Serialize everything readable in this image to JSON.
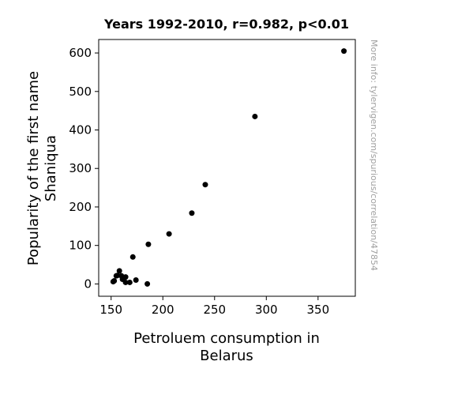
{
  "chart_data": {
    "type": "scatter",
    "title": "Years 1992-2010, r=0.982, p<0.01",
    "xlabel_lines": [
      "Petroluem consumption in",
      "Belarus"
    ],
    "ylabel_lines": [
      "Popularity of the first name",
      "Shaniqua"
    ],
    "watermark": "More info: tylervigen.com/spurious/correlation/47854",
    "xlim": [
      138,
      386
    ],
    "ylim": [
      -32,
      635
    ],
    "xticks": [
      150,
      200,
      250,
      300,
      350
    ],
    "yticks": [
      0,
      100,
      200,
      300,
      400,
      500,
      600
    ],
    "grid": false,
    "marker_color": "#000000",
    "points": [
      {
        "x": 375,
        "y": 605
      },
      {
        "x": 289,
        "y": 435
      },
      {
        "x": 241,
        "y": 258
      },
      {
        "x": 228,
        "y": 184
      },
      {
        "x": 206,
        "y": 130
      },
      {
        "x": 186,
        "y": 103
      },
      {
        "x": 185,
        "y": 0
      },
      {
        "x": 171,
        "y": 70
      },
      {
        "x": 174,
        "y": 10
      },
      {
        "x": 168,
        "y": 4
      },
      {
        "x": 164,
        "y": 18
      },
      {
        "x": 164,
        "y": 4
      },
      {
        "x": 161,
        "y": 12
      },
      {
        "x": 160,
        "y": 21
      },
      {
        "x": 158,
        "y": 34
      },
      {
        "x": 156,
        "y": 22
      },
      {
        "x": 155,
        "y": 21
      },
      {
        "x": 153,
        "y": 8
      },
      {
        "x": 152,
        "y": 6
      }
    ]
  }
}
